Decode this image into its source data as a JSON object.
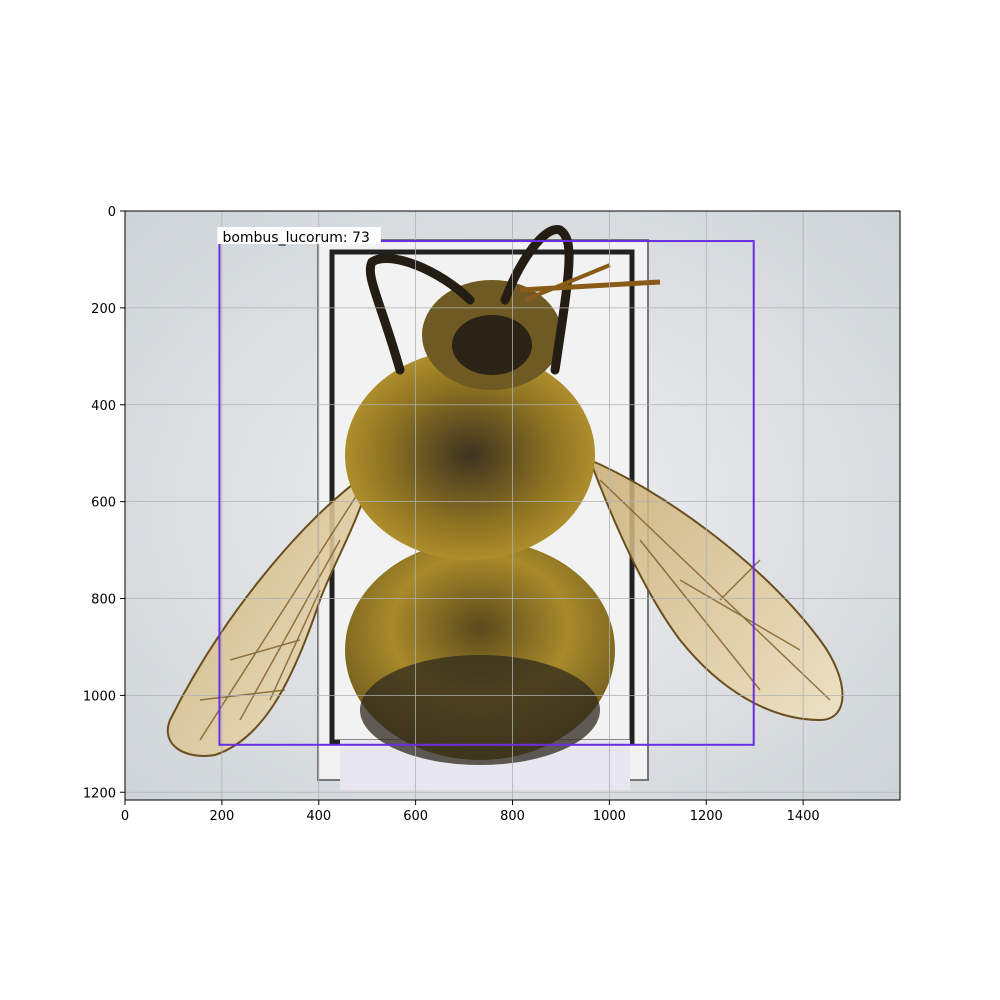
{
  "image": {
    "subject": "bumblebee specimen",
    "width_units": 1600,
    "height_units": 1216
  },
  "axes": {
    "x_ticks": [
      0,
      200,
      400,
      600,
      800,
      1000,
      1200,
      1400
    ],
    "y_ticks": [
      0,
      200,
      400,
      600,
      800,
      1000,
      1200
    ],
    "x_range": [
      0,
      1600
    ],
    "y_range": [
      1216,
      0
    ],
    "grid": true
  },
  "detection": {
    "label_text": "bombus_lucorum: 73",
    "box": {
      "x0": 195,
      "y0": 62,
      "x1": 1298,
      "y1": 1102
    },
    "color": "#6a2ee0"
  },
  "colors": {
    "background": "#dfe3e6",
    "grid": "#b0b0b0"
  }
}
